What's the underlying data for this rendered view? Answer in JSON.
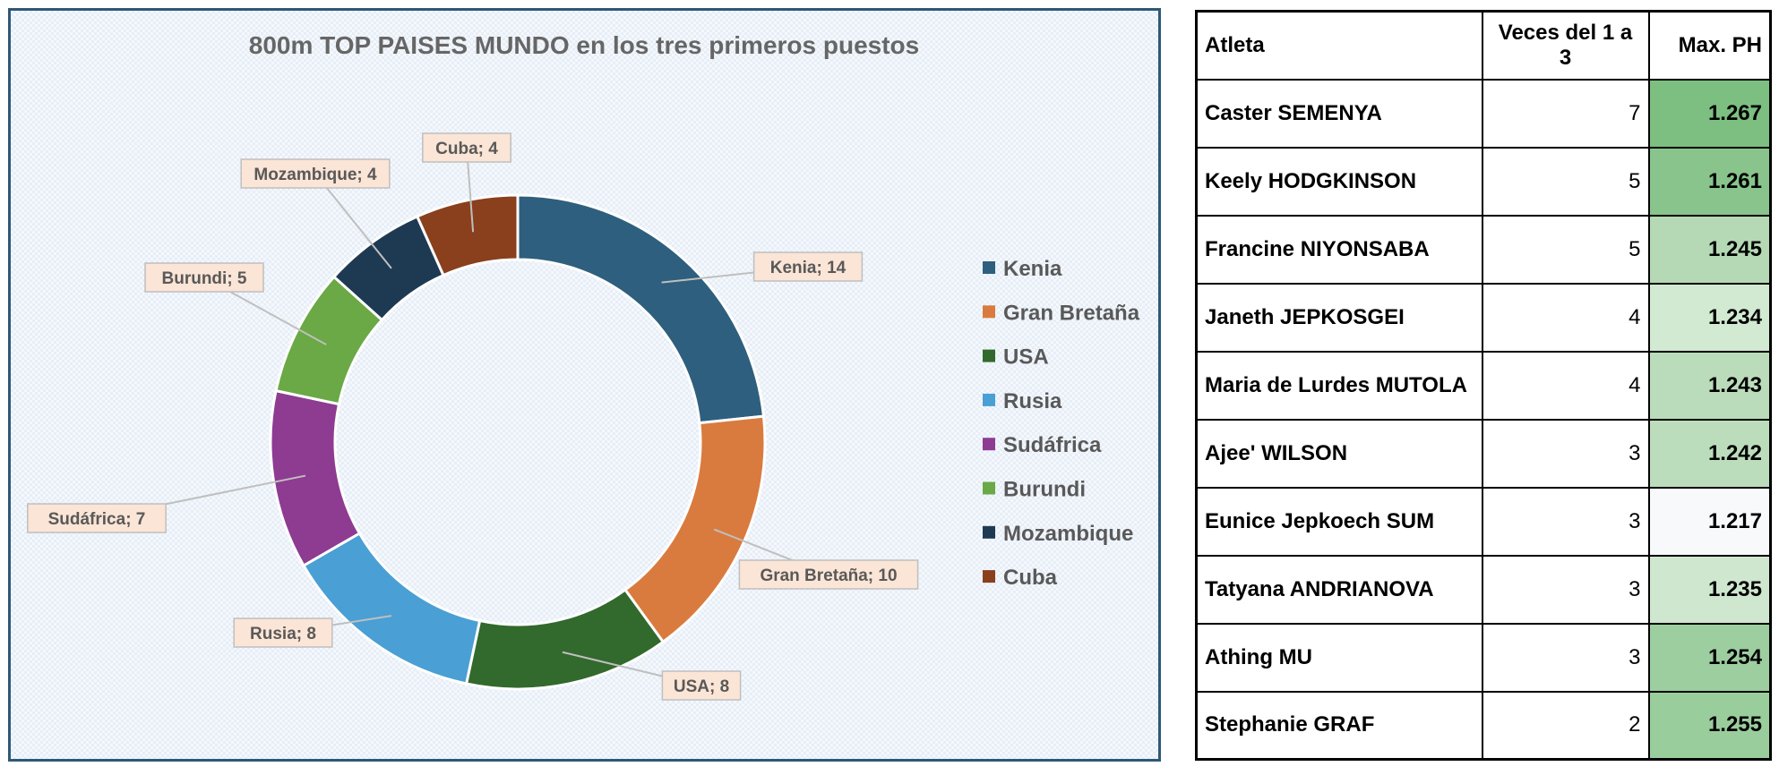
{
  "chart_data": {
    "type": "pie",
    "subtype": "donut",
    "title": "800m TOP PAISES MUNDO en los tres primeros puestos",
    "categories": [
      "Kenia",
      "Gran Bretaña",
      "USA",
      "Rusia",
      "Sudáfrica",
      "Burundi",
      "Mozambique",
      "Cuba"
    ],
    "values": [
      14,
      10,
      8,
      8,
      7,
      5,
      4,
      4
    ],
    "data_labels": [
      "Kenia; 14",
      "Gran Bretaña; 10",
      "USA; 8",
      "Rusia; 8",
      "Sudáfrica; 7",
      "Burundi; 5",
      "Mozambique; 4",
      "Cuba; 4"
    ],
    "colors": [
      "#2e5f7e",
      "#d97b3f",
      "#32692d",
      "#4a9fd4",
      "#8e3b92",
      "#6aa945",
      "#1e3a53",
      "#8a3f1d"
    ],
    "legend_position": "right"
  },
  "table": {
    "headers": [
      "Atleta",
      "Veces del 1 a 3",
      "Max. PH"
    ],
    "rows": [
      {
        "name": "Caster SEMENYA",
        "times": "7",
        "ph": "1.267",
        "color": "#7dbf81"
      },
      {
        "name": "Keely HODGKINSON",
        "times": "5",
        "ph": "1.261",
        "color": "#88c48b"
      },
      {
        "name": "Francine NIYONSABA",
        "times": "5",
        "ph": "1.245",
        "color": "#b4d9b4"
      },
      {
        "name": "Janeth JEPKOSGEI",
        "times": "4",
        "ph": "1.234",
        "color": "#d2e9d2"
      },
      {
        "name": "Maria de Lurdes MUTOLA",
        "times": "4",
        "ph": "1.243",
        "color": "#badcba"
      },
      {
        "name": "Ajee' WILSON",
        "times": "3",
        "ph": "1.242",
        "color": "#bcddbc"
      },
      {
        "name": "Eunice Jepkoech SUM",
        "times": "3",
        "ph": "1.217",
        "color": "#f7f9fb"
      },
      {
        "name": "Tatyana ANDRIANOVA",
        "times": "3",
        "ph": "1.235",
        "color": "#cfe7cf"
      },
      {
        "name": "Athing MU",
        "times": "3",
        "ph": "1.254",
        "color": "#9dcea0"
      },
      {
        "name": "Stephanie GRAF",
        "times": "2",
        "ph": "1.255",
        "color": "#9acd9c"
      }
    ]
  }
}
